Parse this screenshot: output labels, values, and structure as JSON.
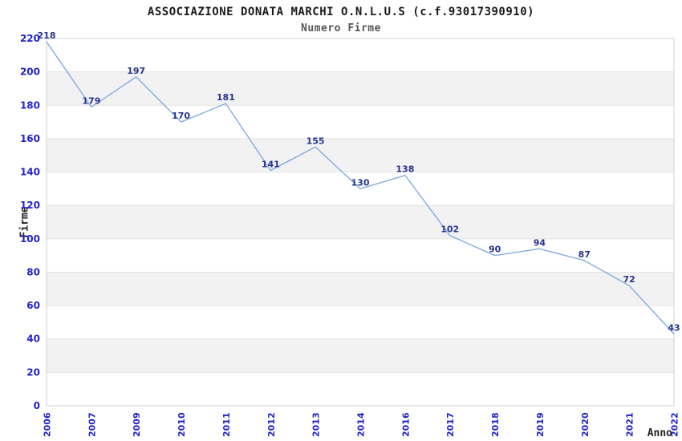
{
  "chart_data": {
    "type": "line",
    "title": "ASSOCIAZIONE DONATA MARCHI O.N.L.U.S (c.f.93017390910)",
    "subtitle": "Numero Firme",
    "xlabel": "Anno",
    "ylabel": "Firme",
    "categories": [
      "2006",
      "2007",
      "2009",
      "2010",
      "2011",
      "2012",
      "2013",
      "2014",
      "2016",
      "2017",
      "2018",
      "2019",
      "2020",
      "2021",
      "2022"
    ],
    "values": [
      218,
      179,
      197,
      170,
      181,
      141,
      155,
      130,
      138,
      102,
      90,
      94,
      87,
      72,
      43
    ],
    "ylim": [
      0,
      220
    ],
    "ytick_step": 20,
    "ytick_labels": [
      "0",
      "20",
      "40",
      "60",
      "80",
      "100",
      "120",
      "140",
      "160",
      "180",
      "200",
      "220"
    ],
    "grid": "horizontal-bands-alternating",
    "legend": "none",
    "value_labels_shown": true,
    "colors": {
      "line": "#7BA6E0",
      "value_label": "#26338F",
      "tick_label": "#2222CC",
      "band_gray": "#F2F2F2",
      "gridline": "#E2E2E2",
      "plot_border": "#D0D0D0",
      "title": "#1A1A1A",
      "subtitle": "#555555",
      "axis_title": "#222222",
      "background": "#FFFFFF"
    }
  }
}
